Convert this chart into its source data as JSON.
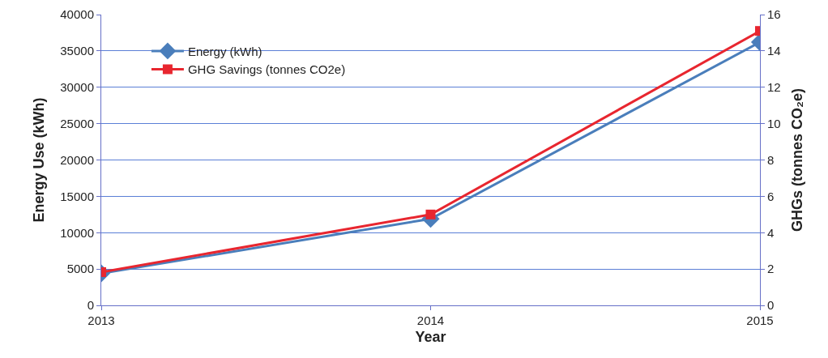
{
  "chart_data": {
    "type": "line",
    "xlabel": "Year",
    "ylabel": "Energy Use (kWh)",
    "y2label": "GHGs (tonnes CO₂e)",
    "categories": [
      "2013",
      "2014",
      "2015"
    ],
    "series": [
      {
        "name": "Energy (kWh)",
        "color": "#4a7ebb",
        "marker": "diamond",
        "values": [
          4400,
          11900,
          36200
        ]
      },
      {
        "name": "GHG Savings (tonnes CO2e)",
        "color": "#e8262f",
        "marker": "square",
        "axis": "y2",
        "values": [
          1.83,
          5.0,
          15.1
        ]
      }
    ],
    "ylim": [
      0,
      40000
    ],
    "yticks": [
      0,
      5000,
      10000,
      15000,
      20000,
      25000,
      30000,
      35000,
      40000
    ],
    "y2lim": [
      0,
      16
    ],
    "y2ticks": [
      0,
      2,
      4,
      6,
      8,
      10,
      12,
      14,
      16
    ],
    "grid": "y",
    "legend": "top left",
    "line_style": "solid"
  }
}
